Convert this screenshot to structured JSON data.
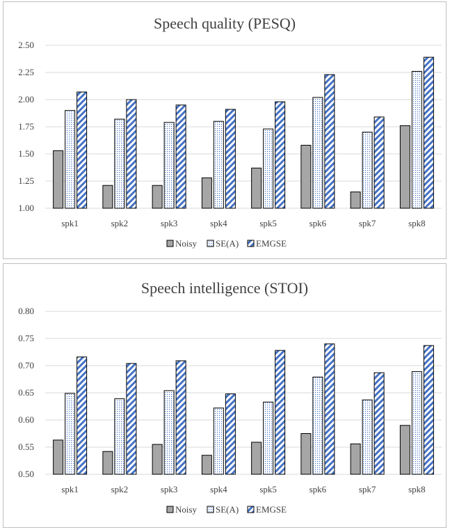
{
  "chart_data": [
    {
      "type": "bar",
      "title": "Speech quality (PESQ)",
      "categories": [
        "spk1",
        "spk2",
        "spk3",
        "spk4",
        "spk5",
        "spk6",
        "spk7",
        "spk8"
      ],
      "ylim": [
        1.0,
        2.5
      ],
      "yticks": [
        "1.00",
        "1.25",
        "1.50",
        "1.75",
        "2.00",
        "2.25",
        "2.50"
      ],
      "grid": true,
      "legend_position": "bottom",
      "series": [
        {
          "name": "Noisy",
          "values": [
            1.53,
            1.21,
            1.21,
            1.28,
            1.37,
            1.58,
            1.15,
            1.76
          ]
        },
        {
          "name": "SE(A)",
          "values": [
            1.9,
            1.82,
            1.79,
            1.8,
            1.73,
            2.02,
            1.7,
            2.26
          ]
        },
        {
          "name": "EMGSE",
          "values": [
            2.07,
            2.0,
            1.95,
            1.91,
            1.98,
            2.23,
            1.84,
            2.39
          ]
        }
      ]
    },
    {
      "type": "bar",
      "title": "Speech intelligence (STOI)",
      "categories": [
        "spk1",
        "spk2",
        "spk3",
        "spk4",
        "spk5",
        "spk6",
        "spk7",
        "spk8"
      ],
      "ylim": [
        0.5,
        0.8
      ],
      "yticks": [
        "0.50",
        "0.55",
        "0.60",
        "0.65",
        "0.70",
        "0.75",
        "0.80"
      ],
      "grid": true,
      "legend_position": "bottom",
      "series": [
        {
          "name": "Noisy",
          "values": [
            0.563,
            0.542,
            0.555,
            0.535,
            0.559,
            0.575,
            0.556,
            0.59
          ]
        },
        {
          "name": "SE(A)",
          "values": [
            0.649,
            0.639,
            0.654,
            0.622,
            0.633,
            0.679,
            0.637,
            0.689
          ]
        },
        {
          "name": "EMGSE",
          "values": [
            0.716,
            0.704,
            0.709,
            0.648,
            0.728,
            0.74,
            0.687,
            0.737
          ]
        }
      ]
    }
  ],
  "colors": {
    "noisy_fill": "#a6a6a6",
    "noisy_stroke": "#000000",
    "sea_dot": "#4472c4",
    "emgse_stripe": "#4472c4",
    "grid": "#d9d9d9",
    "text": "#404040"
  }
}
